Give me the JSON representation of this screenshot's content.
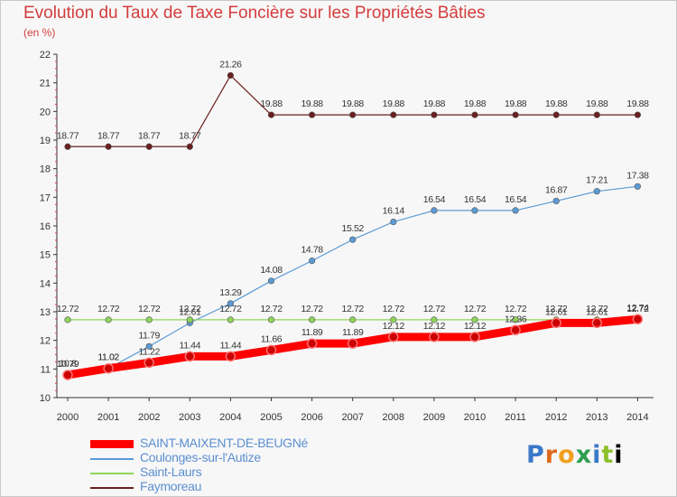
{
  "chart_data": {
    "type": "line",
    "title": "Evolution du Taux de Taxe Foncière sur les Propriétés Bâties",
    "ylabel": "(en %)",
    "xlabel": "",
    "ylim": [
      10,
      22
    ],
    "yticks": [
      10,
      11,
      12,
      13,
      14,
      15,
      16,
      17,
      18,
      19,
      20,
      21,
      22
    ],
    "x": [
      "2000",
      "2001",
      "2002",
      "2003",
      "2004",
      "2005",
      "2006",
      "2007",
      "2008",
      "2009",
      "2010",
      "2011",
      "2012",
      "2013",
      "2014"
    ],
    "series": [
      {
        "name": "SAINT-MAIXENT-DE-BEUGNé",
        "color": "#ff0000",
        "values": [
          10.79,
          11.02,
          11.22,
          11.44,
          11.44,
          11.66,
          11.89,
          11.89,
          12.12,
          12.12,
          12.12,
          12.36,
          12.61,
          12.61,
          12.74
        ],
        "labels": [
          "10.79",
          "11.02",
          "11.22",
          "11.44",
          "11.44",
          "11.66",
          "11.89",
          "11.89",
          "12.12",
          "12.12",
          "12.12",
          "12.36",
          "12.61",
          "12.61",
          "12.74"
        ]
      },
      {
        "name": "Coulonges-sur-l'Autize",
        "color": "#5b9bd5",
        "values": [
          10.8,
          11.02,
          11.79,
          12.61,
          13.29,
          14.08,
          14.78,
          15.52,
          16.14,
          16.54,
          16.54,
          16.54,
          16.87,
          17.21,
          17.38
        ],
        "labels": [
          "10.8",
          "11.02",
          "11.79",
          "12.61",
          "13.29",
          "14.08",
          "14.78",
          "15.52",
          "16.14",
          "16.54",
          "16.54",
          "16.54",
          "16.87",
          "17.21",
          "17.38"
        ]
      },
      {
        "name": "Saint-Laurs",
        "color": "#8fd45a",
        "values": [
          12.72,
          12.72,
          12.72,
          12.72,
          12.72,
          12.72,
          12.72,
          12.72,
          12.72,
          12.72,
          12.72,
          12.72,
          12.72,
          12.72,
          12.72
        ],
        "labels": [
          "12.72",
          "12.72",
          "12.72",
          "12.72",
          "12.72",
          "12.72",
          "12.72",
          "12.72",
          "12.72",
          "12.72",
          "12.72",
          "12.72",
          "12.72",
          "12.72",
          "12.72"
        ]
      },
      {
        "name": "Faymoreau",
        "color": "#6b1f1f",
        "values": [
          18.77,
          18.77,
          18.77,
          18.77,
          21.26,
          19.88,
          19.88,
          19.88,
          19.88,
          19.88,
          19.88,
          19.88,
          19.88,
          19.88,
          19.88
        ],
        "labels": [
          "18.77",
          "18.77",
          "18.77",
          "18.77",
          "21.26",
          "19.88",
          "19.88",
          "19.88",
          "19.88",
          "19.88",
          "19.88",
          "19.88",
          "19.88",
          "19.88",
          "19.88"
        ]
      }
    ],
    "legend": "bottom-left",
    "grid": false
  },
  "logo": {
    "letters": [
      "P",
      "r",
      "o",
      "x",
      "i",
      "t",
      "i"
    ]
  }
}
